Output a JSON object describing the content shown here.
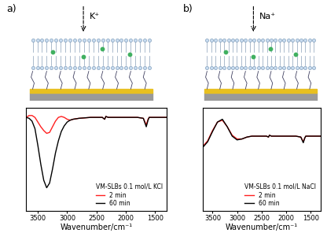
{
  "chart_data": [
    {
      "type": "line",
      "xlabel": "Wavenumber/cm⁻¹",
      "annotation": "VM-SLBs 0.1 mol/L KCl",
      "legend": "lower right",
      "tick_labels": "x",
      "xlim": [
        3700,
        1300
      ],
      "xticks": [
        3500,
        3000,
        2500,
        2000,
        1500
      ],
      "ylim": [
        -1.0,
        0.1
      ],
      "yticks": [],
      "x": [
        3700,
        3650,
        3600,
        3550,
        3500,
        3450,
        3400,
        3350,
        3300,
        3250,
        3200,
        3150,
        3100,
        3050,
        3000,
        2950,
        2900,
        2800,
        2600,
        2400,
        2360,
        2340,
        2300,
        2000,
        1800,
        1700,
        1650,
        1620,
        1600,
        1500,
        1400,
        1300
      ],
      "series": [
        {
          "name": "2 min",
          "color": "#ff2020",
          "values": [
            0.0,
            0.02,
            0.02,
            0.0,
            -0.05,
            -0.1,
            -0.14,
            -0.17,
            -0.16,
            -0.1,
            -0.04,
            0.0,
            0.01,
            0.0,
            -0.02,
            -0.03,
            -0.02,
            -0.01,
            0.0,
            0.0,
            -0.02,
            0.01,
            0.0,
            0.0,
            0.0,
            -0.01,
            -0.08,
            -0.02,
            0.0,
            0.0,
            0.0,
            0.0
          ]
        },
        {
          "name": "60 min",
          "color": "#000000",
          "values": [
            0.0,
            -0.01,
            -0.04,
            -0.12,
            -0.3,
            -0.5,
            -0.67,
            -0.75,
            -0.7,
            -0.55,
            -0.38,
            -0.25,
            -0.15,
            -0.09,
            -0.05,
            -0.03,
            -0.02,
            -0.01,
            0.0,
            0.0,
            -0.02,
            0.01,
            0.0,
            0.0,
            0.0,
            -0.01,
            -0.1,
            -0.03,
            0.0,
            0.0,
            0.0,
            0.0
          ]
        }
      ]
    },
    {
      "type": "line",
      "xlabel": "Wavenumber/cm⁻¹",
      "annotation": "VM-SLBs 0.1 mol/L NaCl",
      "legend": "lower right",
      "tick_labels": "x",
      "xlim": [
        3700,
        1300
      ],
      "xticks": [
        3500,
        3000,
        2500,
        2000,
        1500
      ],
      "ylim": [
        -0.8,
        0.3
      ],
      "yticks": [],
      "x": [
        3700,
        3600,
        3500,
        3400,
        3300,
        3200,
        3100,
        3000,
        2900,
        2800,
        2700,
        2400,
        2360,
        2340,
        2300,
        2000,
        1800,
        1700,
        1650,
        1620,
        1600,
        1500,
        1300
      ],
      "series": [
        {
          "name": "2 min",
          "color": "#ff2020",
          "values": [
            -0.11,
            -0.05,
            0.06,
            0.15,
            0.17,
            0.1,
            0.01,
            -0.03,
            -0.03,
            -0.01,
            0.0,
            0.0,
            -0.01,
            0.01,
            0.0,
            0.0,
            0.0,
            -0.01,
            -0.06,
            -0.02,
            0.0,
            0.0,
            0.0
          ]
        },
        {
          "name": "60 min",
          "color": "#000000",
          "values": [
            -0.12,
            -0.06,
            0.05,
            0.15,
            0.18,
            0.1,
            0.0,
            -0.04,
            -0.03,
            -0.01,
            0.0,
            0.0,
            -0.01,
            0.01,
            0.0,
            0.0,
            0.0,
            -0.01,
            -0.07,
            -0.02,
            0.0,
            0.0,
            0.0
          ]
        }
      ]
    }
  ],
  "diagram": {
    "panels": [
      {
        "label": "a)",
        "ion": "K⁺"
      },
      {
        "label": "b)",
        "ion": "Na⁺"
      }
    ]
  }
}
